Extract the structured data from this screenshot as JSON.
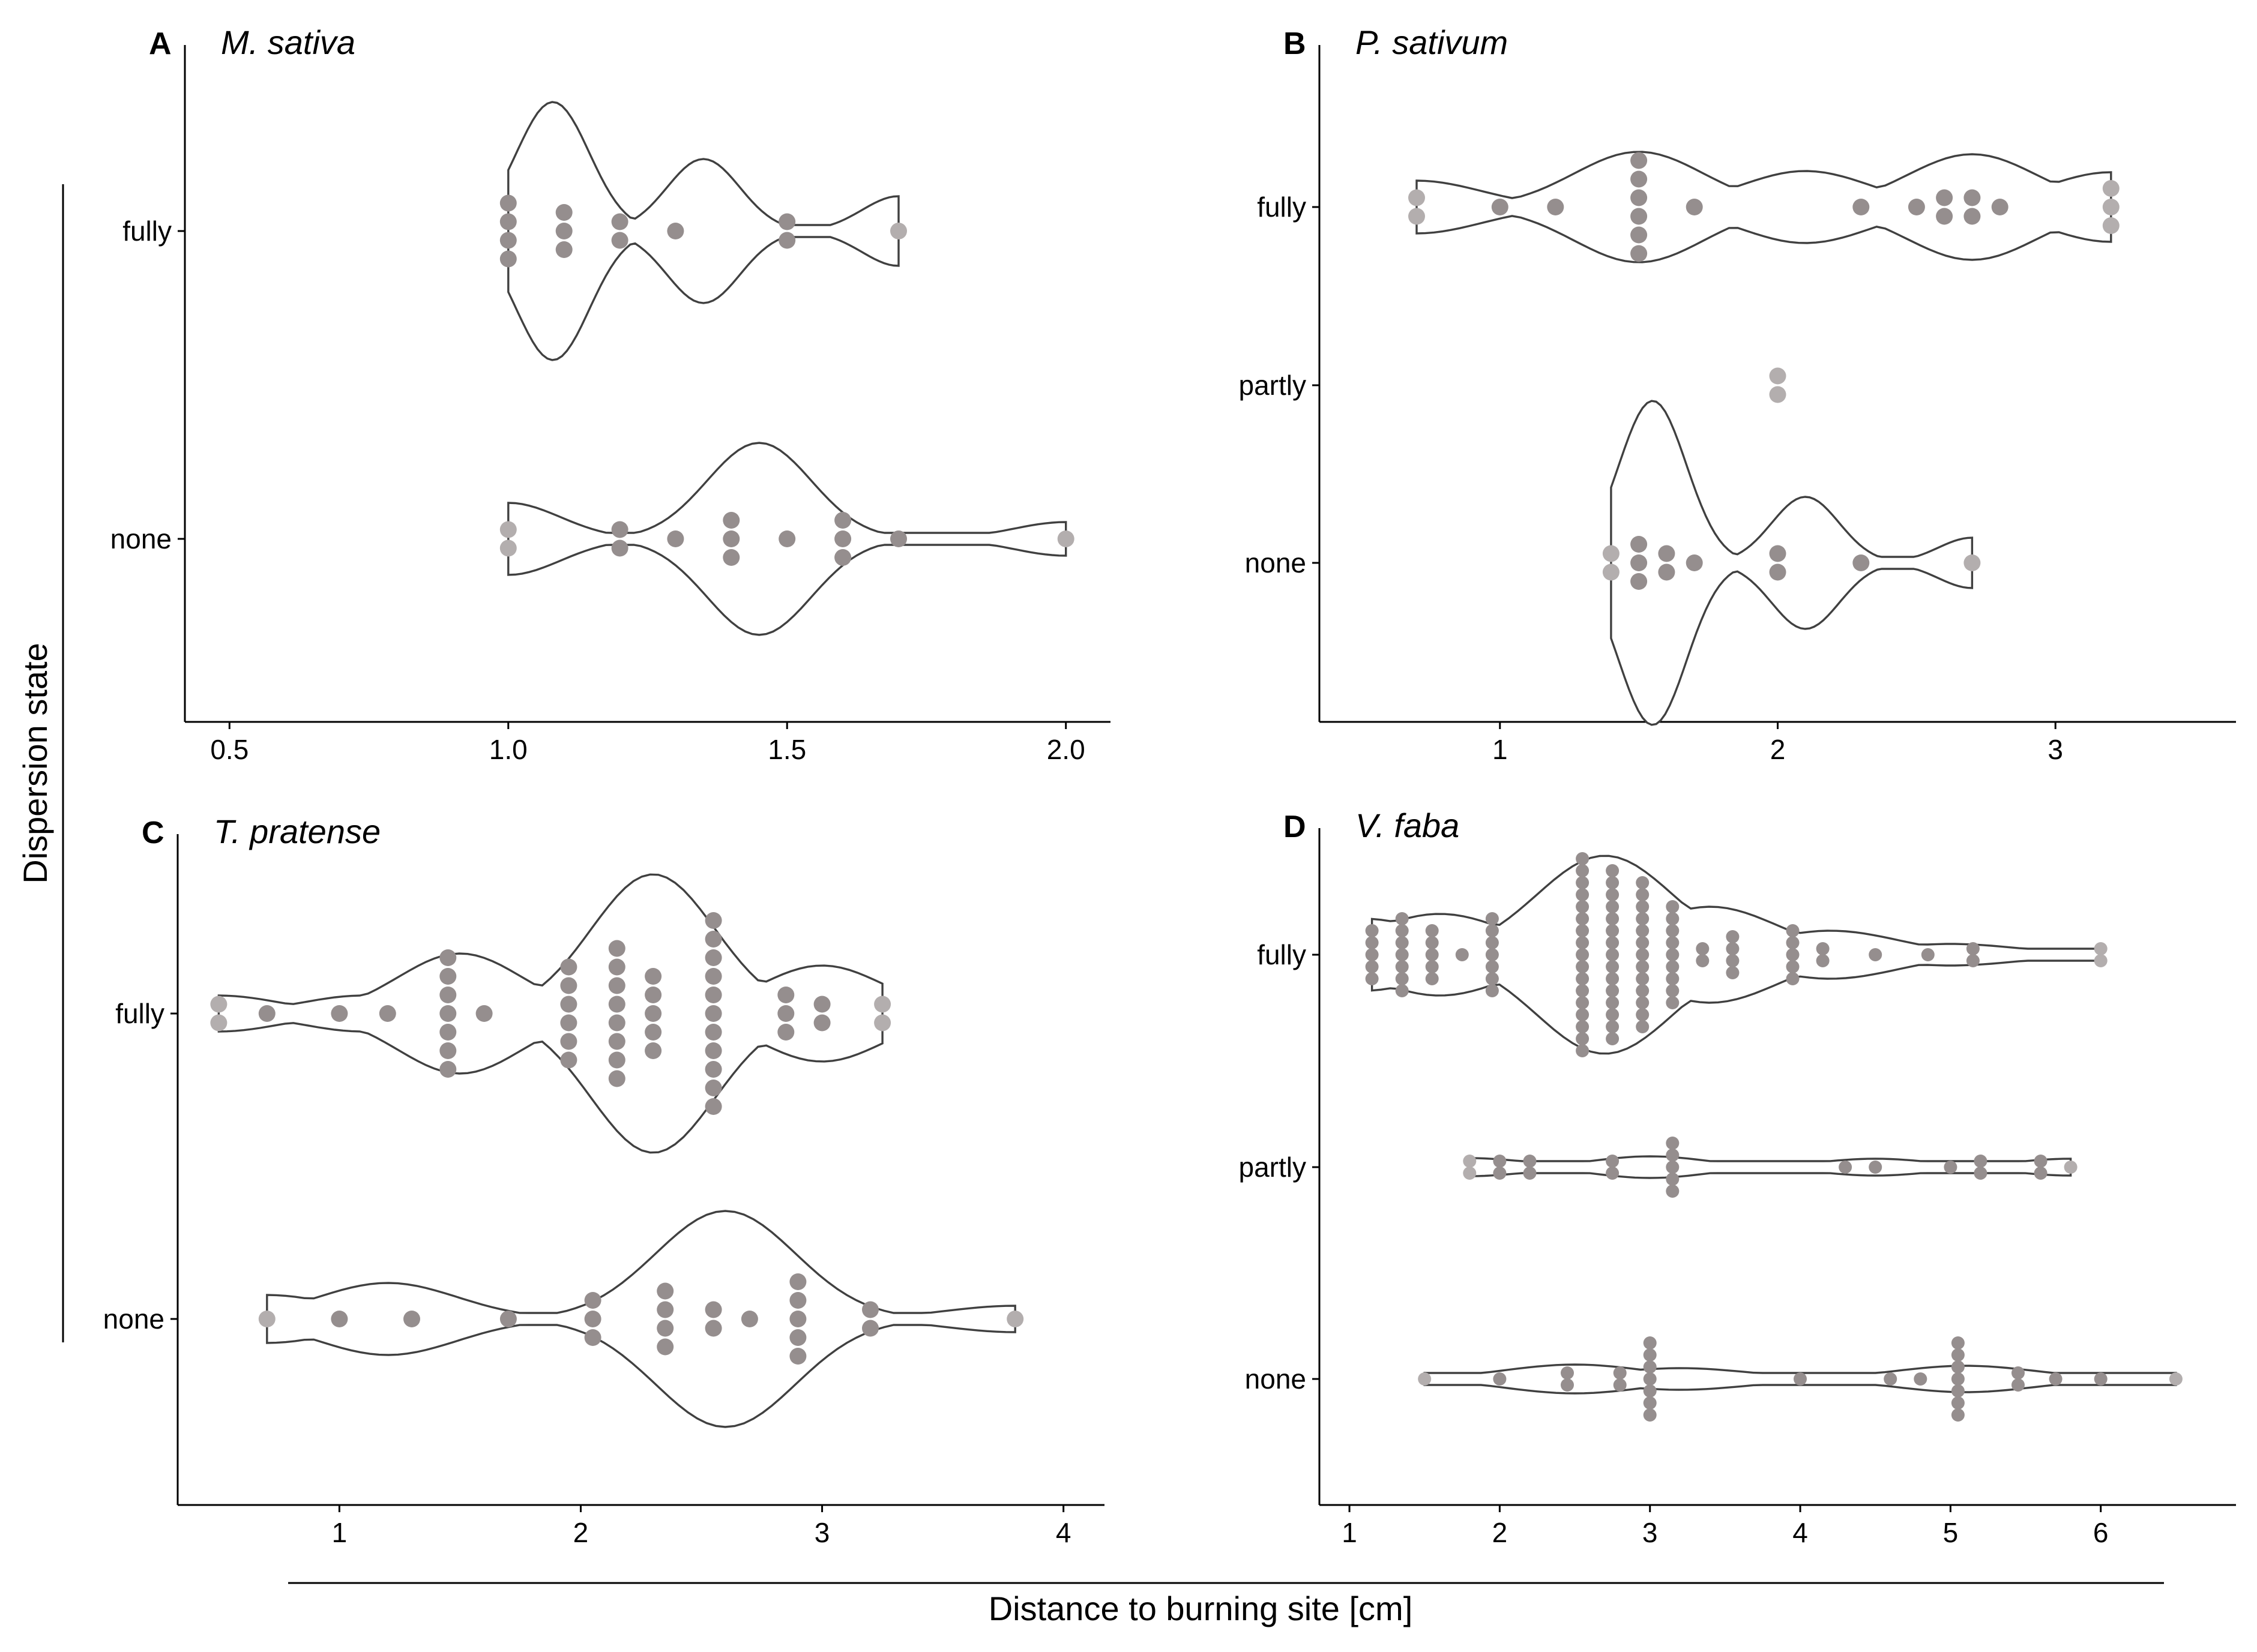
{
  "figure": {
    "xlabel": "Distance to burning site [cm]",
    "ylabel": "Dispersion state"
  },
  "colors": {
    "dot": "#958e8e",
    "dot_light": "#b3aeae",
    "violin_stroke": "#404040",
    "axis": "#000000"
  },
  "chart_data": [
    {
      "type": "scatter",
      "subtype": "violin-beeswarm",
      "panel": "A",
      "title": "M. sativa",
      "categories": [
        "fully",
        "none"
      ],
      "xlim": [
        0.42,
        2.08
      ],
      "xticks": [
        0.5,
        1.0,
        1.5,
        2.0
      ],
      "xtick_labels": [
        "0.5",
        "1.0",
        "1.5",
        "2.0"
      ],
      "series": [
        {
          "category": "fully",
          "values": [
            1.0,
            1.0,
            1.0,
            1.0,
            1.1,
            1.1,
            1.1,
            1.2,
            1.2,
            1.3,
            1.5,
            1.5,
            1.7
          ]
        },
        {
          "category": "none",
          "values": [
            1.0,
            1.0,
            1.2,
            1.2,
            1.3,
            1.4,
            1.4,
            1.4,
            1.5,
            1.6,
            1.6,
            1.6,
            1.7,
            2.0
          ]
        }
      ]
    },
    {
      "type": "scatter",
      "subtype": "violin-beeswarm",
      "panel": "B",
      "title": "P. sativum",
      "categories": [
        "fully",
        "partly",
        "none"
      ],
      "xlim": [
        0.35,
        3.65
      ],
      "xticks": [
        1,
        2,
        3
      ],
      "xtick_labels": [
        "1",
        "2",
        "3"
      ],
      "series": [
        {
          "category": "fully",
          "values": [
            0.7,
            0.7,
            1.0,
            1.2,
            1.5,
            1.5,
            1.5,
            1.5,
            1.5,
            1.5,
            1.7,
            2.3,
            2.5,
            2.6,
            2.6,
            2.7,
            2.7,
            2.8,
            3.2,
            3.2,
            3.2
          ]
        },
        {
          "category": "partly",
          "values": [
            2.0,
            2.0
          ]
        },
        {
          "category": "none",
          "values": [
            1.4,
            1.4,
            1.5,
            1.5,
            1.5,
            1.6,
            1.6,
            1.7,
            2.0,
            2.0,
            2.3,
            2.7
          ]
        }
      ]
    },
    {
      "type": "scatter",
      "subtype": "violin-beeswarm",
      "panel": "C",
      "title": "T. pratense",
      "categories": [
        "fully",
        "none"
      ],
      "xlim": [
        0.33,
        4.17
      ],
      "xticks": [
        1,
        2,
        3,
        4
      ],
      "xtick_labels": [
        "1",
        "2",
        "3",
        "4"
      ],
      "series": [
        {
          "category": "fully",
          "values": [
            0.5,
            0.5,
            0.7,
            1.0,
            1.2,
            1.45,
            1.45,
            1.45,
            1.45,
            1.45,
            1.45,
            1.45,
            1.6,
            1.95,
            1.95,
            1.95,
            1.95,
            1.95,
            1.95,
            2.15,
            2.15,
            2.15,
            2.15,
            2.15,
            2.15,
            2.15,
            2.15,
            2.3,
            2.3,
            2.3,
            2.3,
            2.3,
            2.55,
            2.55,
            2.55,
            2.55,
            2.55,
            2.55,
            2.55,
            2.55,
            2.55,
            2.55,
            2.55,
            2.85,
            2.85,
            2.85,
            3.0,
            3.0,
            3.25,
            3.25
          ]
        },
        {
          "category": "none",
          "values": [
            0.7,
            1.0,
            1.3,
            1.7,
            2.05,
            2.05,
            2.05,
            2.35,
            2.35,
            2.35,
            2.35,
            2.55,
            2.55,
            2.7,
            2.9,
            2.9,
            2.9,
            2.9,
            2.9,
            3.2,
            3.2,
            3.8
          ]
        }
      ]
    },
    {
      "type": "scatter",
      "subtype": "violin-beeswarm",
      "panel": "D",
      "title": "V. faba",
      "categories": [
        "fully",
        "partly",
        "none"
      ],
      "xlim": [
        0.8,
        6.9
      ],
      "xticks": [
        1,
        2,
        3,
        4,
        5,
        6
      ],
      "xtick_labels": [
        "1",
        "2",
        "3",
        "4",
        "5",
        "6"
      ],
      "series": [
        {
          "category": "fully",
          "values": [
            1.15,
            1.15,
            1.15,
            1.15,
            1.15,
            1.35,
            1.35,
            1.35,
            1.35,
            1.35,
            1.35,
            1.35,
            1.55,
            1.55,
            1.55,
            1.55,
            1.55,
            1.75,
            1.95,
            1.95,
            1.95,
            1.95,
            1.95,
            1.95,
            1.95,
            2.55,
            2.55,
            2.55,
            2.55,
            2.55,
            2.55,
            2.55,
            2.55,
            2.55,
            2.55,
            2.55,
            2.55,
            2.55,
            2.55,
            2.55,
            2.55,
            2.55,
            2.75,
            2.75,
            2.75,
            2.75,
            2.75,
            2.75,
            2.75,
            2.75,
            2.75,
            2.75,
            2.75,
            2.75,
            2.75,
            2.75,
            2.75,
            2.95,
            2.95,
            2.95,
            2.95,
            2.95,
            2.95,
            2.95,
            2.95,
            2.95,
            2.95,
            2.95,
            2.95,
            2.95,
            3.15,
            3.15,
            3.15,
            3.15,
            3.15,
            3.15,
            3.15,
            3.15,
            3.15,
            3.35,
            3.35,
            3.55,
            3.55,
            3.55,
            3.55,
            3.95,
            3.95,
            3.95,
            3.95,
            3.95,
            4.15,
            4.15,
            4.5,
            4.85,
            5.15,
            5.15,
            6.0,
            6.0
          ]
        },
        {
          "category": "partly",
          "values": [
            1.8,
            1.8,
            2.0,
            2.0,
            2.2,
            2.2,
            2.75,
            2.75,
            3.15,
            3.15,
            3.15,
            3.15,
            3.15,
            4.3,
            4.5,
            5.0,
            5.2,
            5.2,
            5.6,
            5.6,
            5.8
          ]
        },
        {
          "category": "none",
          "values": [
            1.5,
            2.0,
            2.45,
            2.45,
            2.8,
            2.8,
            3.0,
            3.0,
            3.0,
            3.0,
            3.0,
            3.0,
            3.0,
            4.0,
            4.6,
            4.8,
            5.05,
            5.05,
            5.05,
            5.05,
            5.05,
            5.05,
            5.05,
            5.45,
            5.45,
            5.7,
            6.0,
            6.5
          ]
        }
      ]
    }
  ]
}
